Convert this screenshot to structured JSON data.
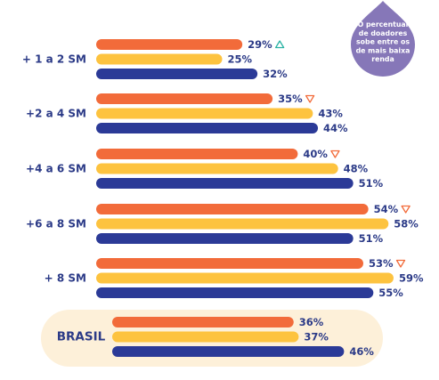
{
  "chart_data": {
    "type": "bar",
    "orientation": "horizontal",
    "categories": [
      "+ 1 a 2 SM",
      "+2 a 4 SM",
      "+4 a 6 SM",
      "+6 a 8 SM",
      "+ 8 SM",
      "BRASIL"
    ],
    "series": [
      {
        "values": [
          29,
          35,
          40,
          54,
          53,
          36
        ],
        "color": "#f26b3a"
      },
      {
        "values": [
          25,
          43,
          48,
          58,
          59,
          37
        ],
        "color": "#fdc33f"
      },
      {
        "values": [
          32,
          44,
          51,
          51,
          55,
          46
        ],
        "color": "#2b3a97"
      }
    ],
    "data_labels": [
      [
        "29%",
        "25%",
        "32%"
      ],
      [
        "35%",
        "43%",
        "44%"
      ],
      [
        "40%",
        "48%",
        "51%"
      ],
      [
        "54%",
        "58%",
        "51%"
      ],
      [
        "53%",
        "59%",
        "55%"
      ],
      [
        "36%",
        "37%",
        "46%"
      ]
    ],
    "trend_markers": [
      "up",
      "down",
      "down",
      "down",
      "down",
      null
    ],
    "trend_colors": {
      "up": "#2bb3a4",
      "down": "#f26b3a"
    },
    "highlight_category": "BRASIL",
    "highlight_color": "#fdf0d9",
    "callout": {
      "lines": [
        "O percentual",
        "de doadores",
        "sobe entre os",
        "de mais baixa",
        "renda"
      ],
      "color": "#8677b8"
    },
    "label_color": "#2b3a87",
    "grid": false,
    "legend": "none"
  }
}
